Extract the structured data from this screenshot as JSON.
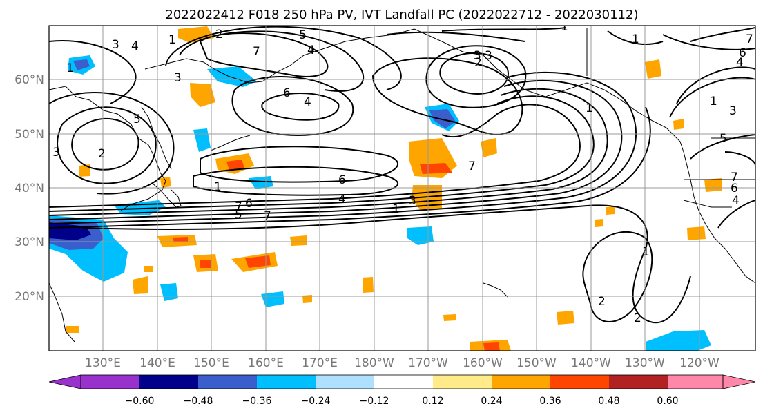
{
  "title": "2022022412 F018 250 hPa PV, IVT Landfall PC (2022022712 - 2022030112)",
  "lat_labels": [
    "60°N",
    "50°N",
    "40°N",
    "30°N",
    "20°N"
  ],
  "lon_labels": [
    "130°E",
    "140°E",
    "150°E",
    "160°E",
    "170°E",
    "180°W",
    "170°W",
    "160°W",
    "150°W",
    "140°W",
    "130°W",
    "120°W"
  ],
  "colorbar": {
    "ticks": [
      "−0.60",
      "−0.48",
      "−0.36",
      "−0.24",
      "−0.12",
      "0.12",
      "0.24",
      "0.36",
      "0.48",
      "0.60"
    ],
    "colors": [
      "#9932cc",
      "#00008b",
      "#3a5fcd",
      "#00bfff",
      "#b0e0ff",
      "#ffffff",
      "#ffeb8a",
      "#ffa500",
      "#ff4500",
      "#b22222",
      "#ff88aa"
    ]
  },
  "contour_labels": [
    "1",
    "2",
    "3",
    "4",
    "5",
    "6",
    "7",
    "1",
    "4",
    "3",
    "2",
    "3",
    "1",
    "6",
    "4",
    "1",
    "3",
    "7",
    "1",
    "1",
    "1",
    "2",
    "3",
    "5",
    "6",
    "7",
    "2",
    "1",
    "5",
    "6",
    "7",
    "4",
    "6",
    "4",
    "3",
    "2",
    "1",
    "3",
    "4",
    "7",
    "5",
    "7"
  ],
  "colors": {
    "contour": "#000000",
    "coast": "#000000",
    "grid": "#999999"
  }
}
